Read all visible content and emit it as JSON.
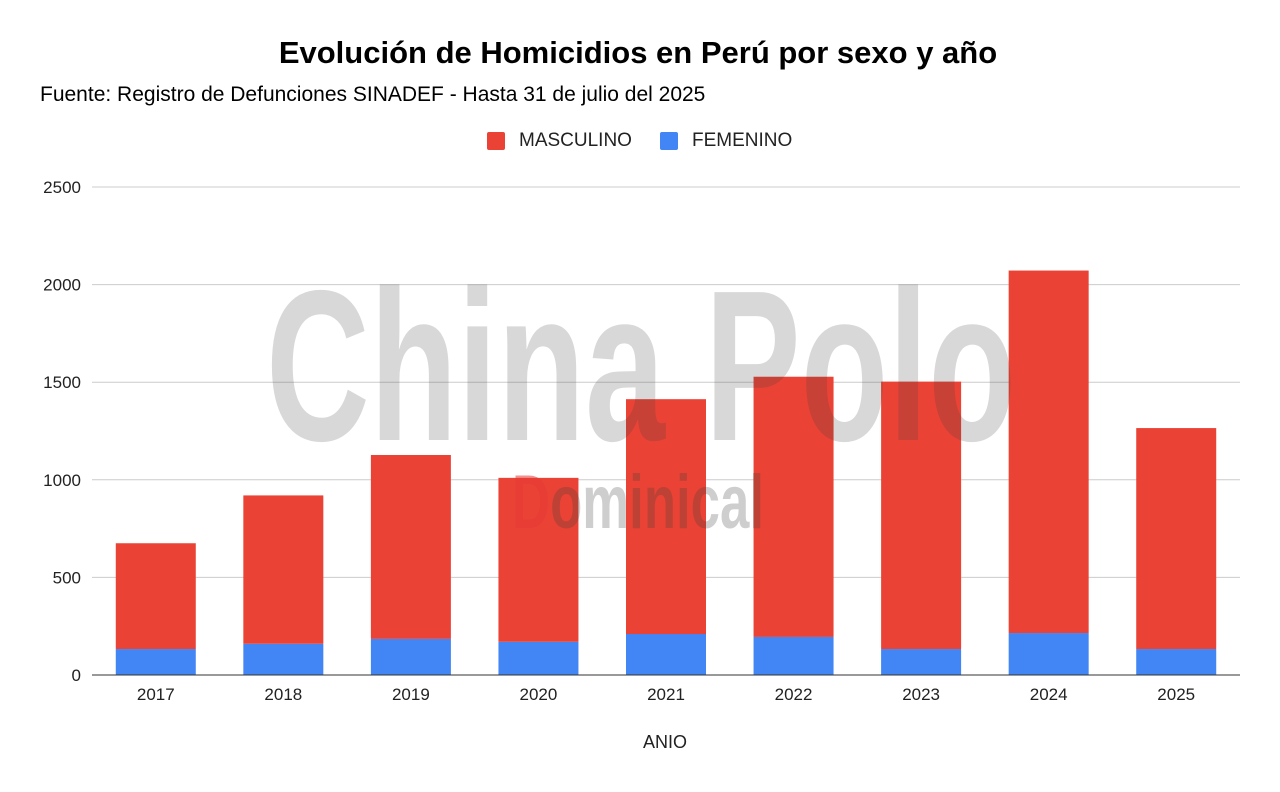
{
  "chart_data": {
    "type": "bar",
    "stacked": true,
    "title": "Evolución de Homicidios en Perú por sexo y año",
    "subtitle": "Fuente: Registro de Defunciones SINADEF - Hasta 31 de julio del 2025",
    "xlabel": "ANIO",
    "ylabel": "",
    "ylim": [
      0,
      2500
    ],
    "yticks": [
      0,
      500,
      1000,
      1500,
      2000,
      2500
    ],
    "grid": true,
    "legend_position": "top-center",
    "categories": [
      "2017",
      "2018",
      "2019",
      "2020",
      "2021",
      "2022",
      "2023",
      "2024",
      "2025"
    ],
    "series": [
      {
        "name": "FEMENINO",
        "color": "#4285f4",
        "values": [
          133,
          160,
          185,
          170,
          210,
          195,
          133,
          215,
          133
        ]
      },
      {
        "name": "MASCULINO",
        "color": "#ea4335",
        "values": [
          542,
          760,
          942,
          840,
          1203,
          1333,
          1370,
          1857,
          1132
        ]
      }
    ],
    "legend_order": [
      "MASCULINO",
      "FEMENINO"
    ]
  },
  "watermark": {
    "main_text": "China Polo",
    "sub_text": "Dominical",
    "sub_first_letter_color": "#e53935"
  }
}
